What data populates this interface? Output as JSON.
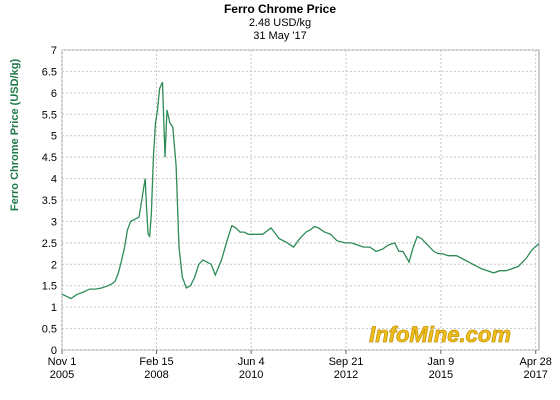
{
  "chart_data": {
    "type": "line",
    "title": "Ferro Chrome Price",
    "subtitle_price": "2.48 USD/kg",
    "subtitle_date": "31 May '17",
    "ylabel": "Ferro Chrome Price (USD/kg)",
    "xlabel": "",
    "ylim": [
      0,
      7
    ],
    "ytick_labels": [
      "0",
      "0.5",
      "1",
      "1.5",
      "2",
      "2.5",
      "3",
      "3.5",
      "4",
      "4.5",
      "5",
      "5.5",
      "6",
      "6.5",
      "7"
    ],
    "xlim": [
      2005.833,
      2017.4
    ],
    "xticks": [
      {
        "x": 2005.833,
        "label1": "Nov 1",
        "label2": "2005"
      },
      {
        "x": 2008.125,
        "label1": "Feb 15",
        "label2": "2008"
      },
      {
        "x": 2010.42,
        "label1": "Jun 4",
        "label2": "2010"
      },
      {
        "x": 2012.72,
        "label1": "Sep 21",
        "label2": "2012"
      },
      {
        "x": 2015.02,
        "label1": "Jan 9",
        "label2": "2015"
      },
      {
        "x": 2017.32,
        "label1": "Apr 28",
        "label2": "2017"
      }
    ],
    "grid": true,
    "line_color": "#2e8b57",
    "series": [
      {
        "x": [
          2005.833,
          2005.95,
          2006.05,
          2006.2,
          2006.35,
          2006.5,
          2006.65,
          2006.8,
          2006.95,
          2007.05,
          2007.12,
          2007.2,
          2007.28,
          2007.35,
          2007.42,
          2007.5,
          2007.6,
          2007.7,
          2007.75,
          2007.8,
          2007.85,
          2007.88,
          2007.92,
          2007.96,
          2008.0,
          2008.05,
          2008.1,
          2008.15,
          2008.2,
          2008.27,
          2008.33,
          2008.38,
          2008.45,
          2008.52,
          2008.6,
          2008.67,
          2008.75,
          2008.85,
          2008.95,
          2009.05,
          2009.15,
          2009.25,
          2009.35,
          2009.45,
          2009.55,
          2009.7,
          2009.85,
          2009.95,
          2010.05,
          2010.15,
          2010.25,
          2010.35,
          2010.5,
          2010.7,
          2010.9,
          2011.1,
          2011.3,
          2011.45,
          2011.6,
          2011.75,
          2011.85,
          2011.95,
          2012.05,
          2012.2,
          2012.35,
          2012.5,
          2012.7,
          2012.85,
          2013.0,
          2013.15,
          2013.3,
          2013.45,
          2013.6,
          2013.75,
          2013.9,
          2014.0,
          2014.1,
          2014.25,
          2014.35,
          2014.45,
          2014.55,
          2014.65,
          2014.75,
          2014.85,
          2014.95,
          2015.05,
          2015.2,
          2015.4,
          2015.6,
          2015.8,
          2016.0,
          2016.15,
          2016.3,
          2016.45,
          2016.6,
          2016.75,
          2016.9,
          2017.0,
          2017.1,
          2017.2,
          2017.3,
          2017.4
        ],
        "values": [
          1.3,
          1.25,
          1.2,
          1.3,
          1.35,
          1.42,
          1.42,
          1.45,
          1.5,
          1.55,
          1.6,
          1.8,
          2.1,
          2.4,
          2.8,
          3.0,
          3.05,
          3.1,
          3.4,
          3.7,
          4.0,
          3.4,
          2.7,
          2.65,
          3.2,
          4.5,
          5.3,
          5.6,
          6.1,
          6.25,
          4.5,
          5.6,
          5.3,
          5.2,
          4.3,
          2.4,
          1.7,
          1.45,
          1.5,
          1.7,
          2.0,
          2.1,
          2.05,
          2.0,
          1.75,
          2.1,
          2.6,
          2.9,
          2.85,
          2.75,
          2.75,
          2.7,
          2.7,
          2.7,
          2.85,
          2.6,
          2.5,
          2.4,
          2.6,
          2.75,
          2.8,
          2.88,
          2.85,
          2.75,
          2.7,
          2.55,
          2.5,
          2.5,
          2.45,
          2.4,
          2.4,
          2.3,
          2.35,
          2.45,
          2.5,
          2.3,
          2.3,
          2.05,
          2.4,
          2.65,
          2.6,
          2.5,
          2.4,
          2.3,
          2.25,
          2.25,
          2.2,
          2.2,
          2.1,
          2.0,
          1.9,
          1.85,
          1.8,
          1.85,
          1.85,
          1.9,
          1.95,
          2.05,
          2.15,
          2.3,
          2.4,
          2.48
        ]
      }
    ]
  },
  "watermark": "InfoMine.com"
}
